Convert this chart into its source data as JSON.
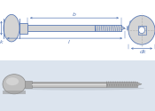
{
  "bg_color": "#ffffff",
  "line_color": "#5a7ab5",
  "dim_color": "#5a7ab5",
  "centerline_color": "#aaaaaa",
  "top_bg": "#f0f4fa",
  "bottom_bg": "#e8eef5",
  "label_fontsize": 4.5,
  "bolt_fill": "#d4d4d4",
  "bolt_edge": "#5a7ab5",
  "photo_head_fill": "#b8b8b8",
  "photo_shank_fill": "#c8c8c8",
  "photo_thread_fill": "#a8a8a8",
  "photo_edge": "#888888",
  "photo_bg": "#dce4ee"
}
